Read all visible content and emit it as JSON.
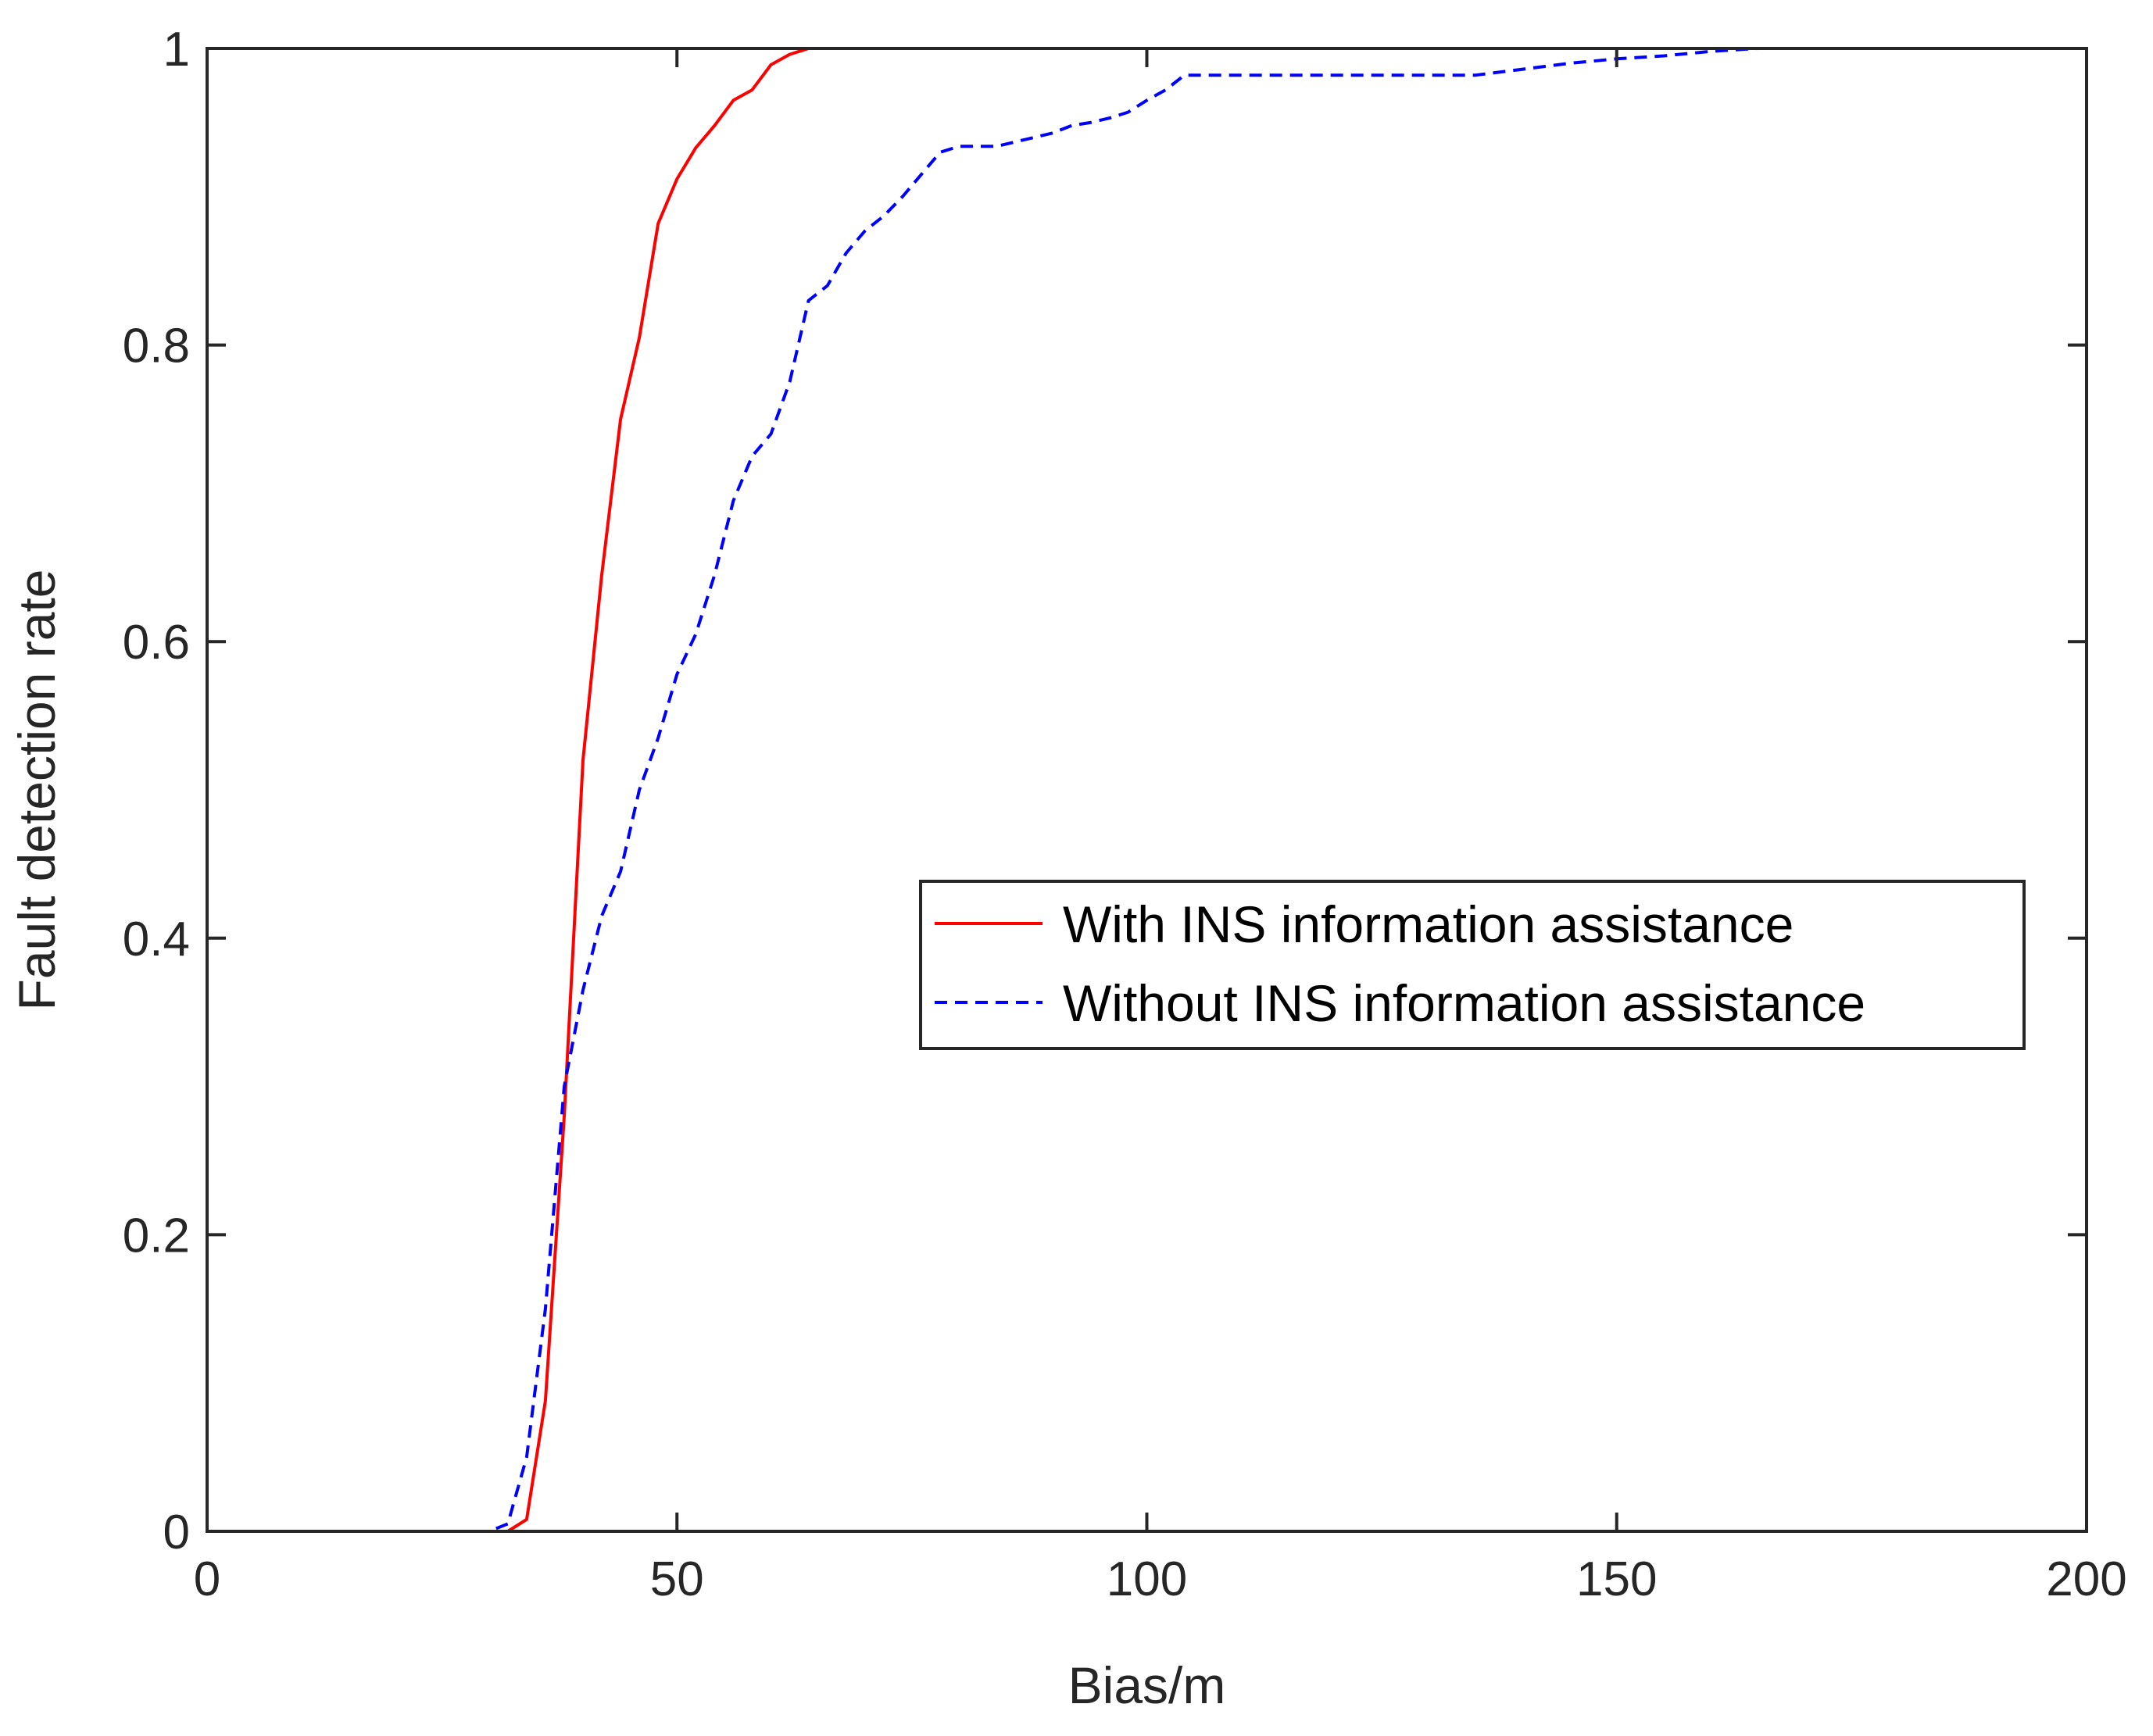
{
  "chart_data": {
    "type": "line",
    "title": "",
    "xlabel": "Bias/m",
    "ylabel": "Fault detection rate",
    "xlim": [
      0,
      200
    ],
    "ylim": [
      0,
      1
    ],
    "xticks": [
      0,
      50,
      100,
      150,
      200
    ],
    "xtick_labels": [
      "0",
      "50",
      "100",
      "150",
      "200"
    ],
    "yticks": [
      0,
      0.2,
      0.4,
      0.6,
      0.8,
      1
    ],
    "ytick_labels": [
      "0",
      "0.2",
      "0.4",
      "0.6",
      "0.8",
      "1"
    ],
    "grid": false,
    "box": true,
    "legend_position": "middle-right",
    "series": [
      {
        "name": "With INS information assistance",
        "color": "#ff0000",
        "line_style": "solid",
        "x": [
          20,
          22,
          24,
          26,
          28,
          30,
          32,
          34,
          36,
          38,
          40,
          42,
          44,
          46,
          48,
          50,
          52,
          54,
          56,
          58,
          60,
          62,
          64,
          66,
          70,
          80,
          100,
          150,
          200
        ],
        "y": [
          0,
          0,
          0,
          0,
          0,
          0,
          0,
          0.008,
          0.088,
          0.28,
          0.52,
          0.645,
          0.75,
          0.805,
          0.882,
          0.912,
          0.933,
          0.948,
          0.965,
          0.972,
          0.989,
          0.996,
          1,
          1,
          1,
          1,
          1,
          1,
          1
        ]
      },
      {
        "name": "Without INS information assistance",
        "color": "#0000ff",
        "line_style": "dashed",
        "x": [
          20,
          22,
          24,
          26,
          28,
          30,
          32,
          34,
          36,
          38,
          40,
          42,
          44,
          46,
          48,
          50,
          52,
          54,
          56,
          58,
          60,
          62,
          64,
          66,
          68,
          70,
          72,
          74,
          76,
          78,
          80,
          82,
          84,
          86,
          88,
          90,
          92,
          94,
          96,
          98,
          100,
          102,
          104,
          106,
          110,
          120,
          130,
          135,
          140,
          145,
          150,
          155,
          160,
          165,
          170,
          180,
          190,
          200
        ],
        "y": [
          0,
          0,
          0,
          0,
          0,
          0,
          0.005,
          0.05,
          0.15,
          0.3,
          0.365,
          0.415,
          0.445,
          0.5,
          0.535,
          0.578,
          0.605,
          0.645,
          0.695,
          0.725,
          0.74,
          0.775,
          0.83,
          0.84,
          0.862,
          0.877,
          0.887,
          0.9,
          0.915,
          0.93,
          0.934,
          0.934,
          0.934,
          0.937,
          0.94,
          0.943,
          0.948,
          0.95,
          0.953,
          0.957,
          0.965,
          0.972,
          0.982,
          0.982,
          0.982,
          0.982,
          0.982,
          0.982,
          0.986,
          0.99,
          0.993,
          0.995,
          0.998,
          1,
          1,
          1,
          1,
          1
        ]
      }
    ]
  }
}
